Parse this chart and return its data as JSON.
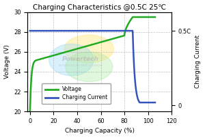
{
  "title": "Charging Characteristics @0.5C 25℃",
  "xlabel": "Charging Capacity (%)",
  "ylabel_left": "Voltage (V)",
  "ylabel_right": "Charging Current",
  "xlim": [
    -2,
    120
  ],
  "ylim_left": [
    20.0,
    30.0
  ],
  "xticks": [
    0,
    20,
    40,
    60,
    80,
    100,
    120
  ],
  "yticks_left": [
    20.0,
    22.0,
    24.0,
    26.0,
    28.0,
    30.0
  ],
  "voltage_color": "#22aa22",
  "current_color": "#3355bb",
  "bg_color": "#ffffff",
  "legend_voltage": "Voltage",
  "legend_current": "Charging Current",
  "title_fontsize": 7.5,
  "axis_label_fontsize": 6.5,
  "tick_fontsize": 6
}
